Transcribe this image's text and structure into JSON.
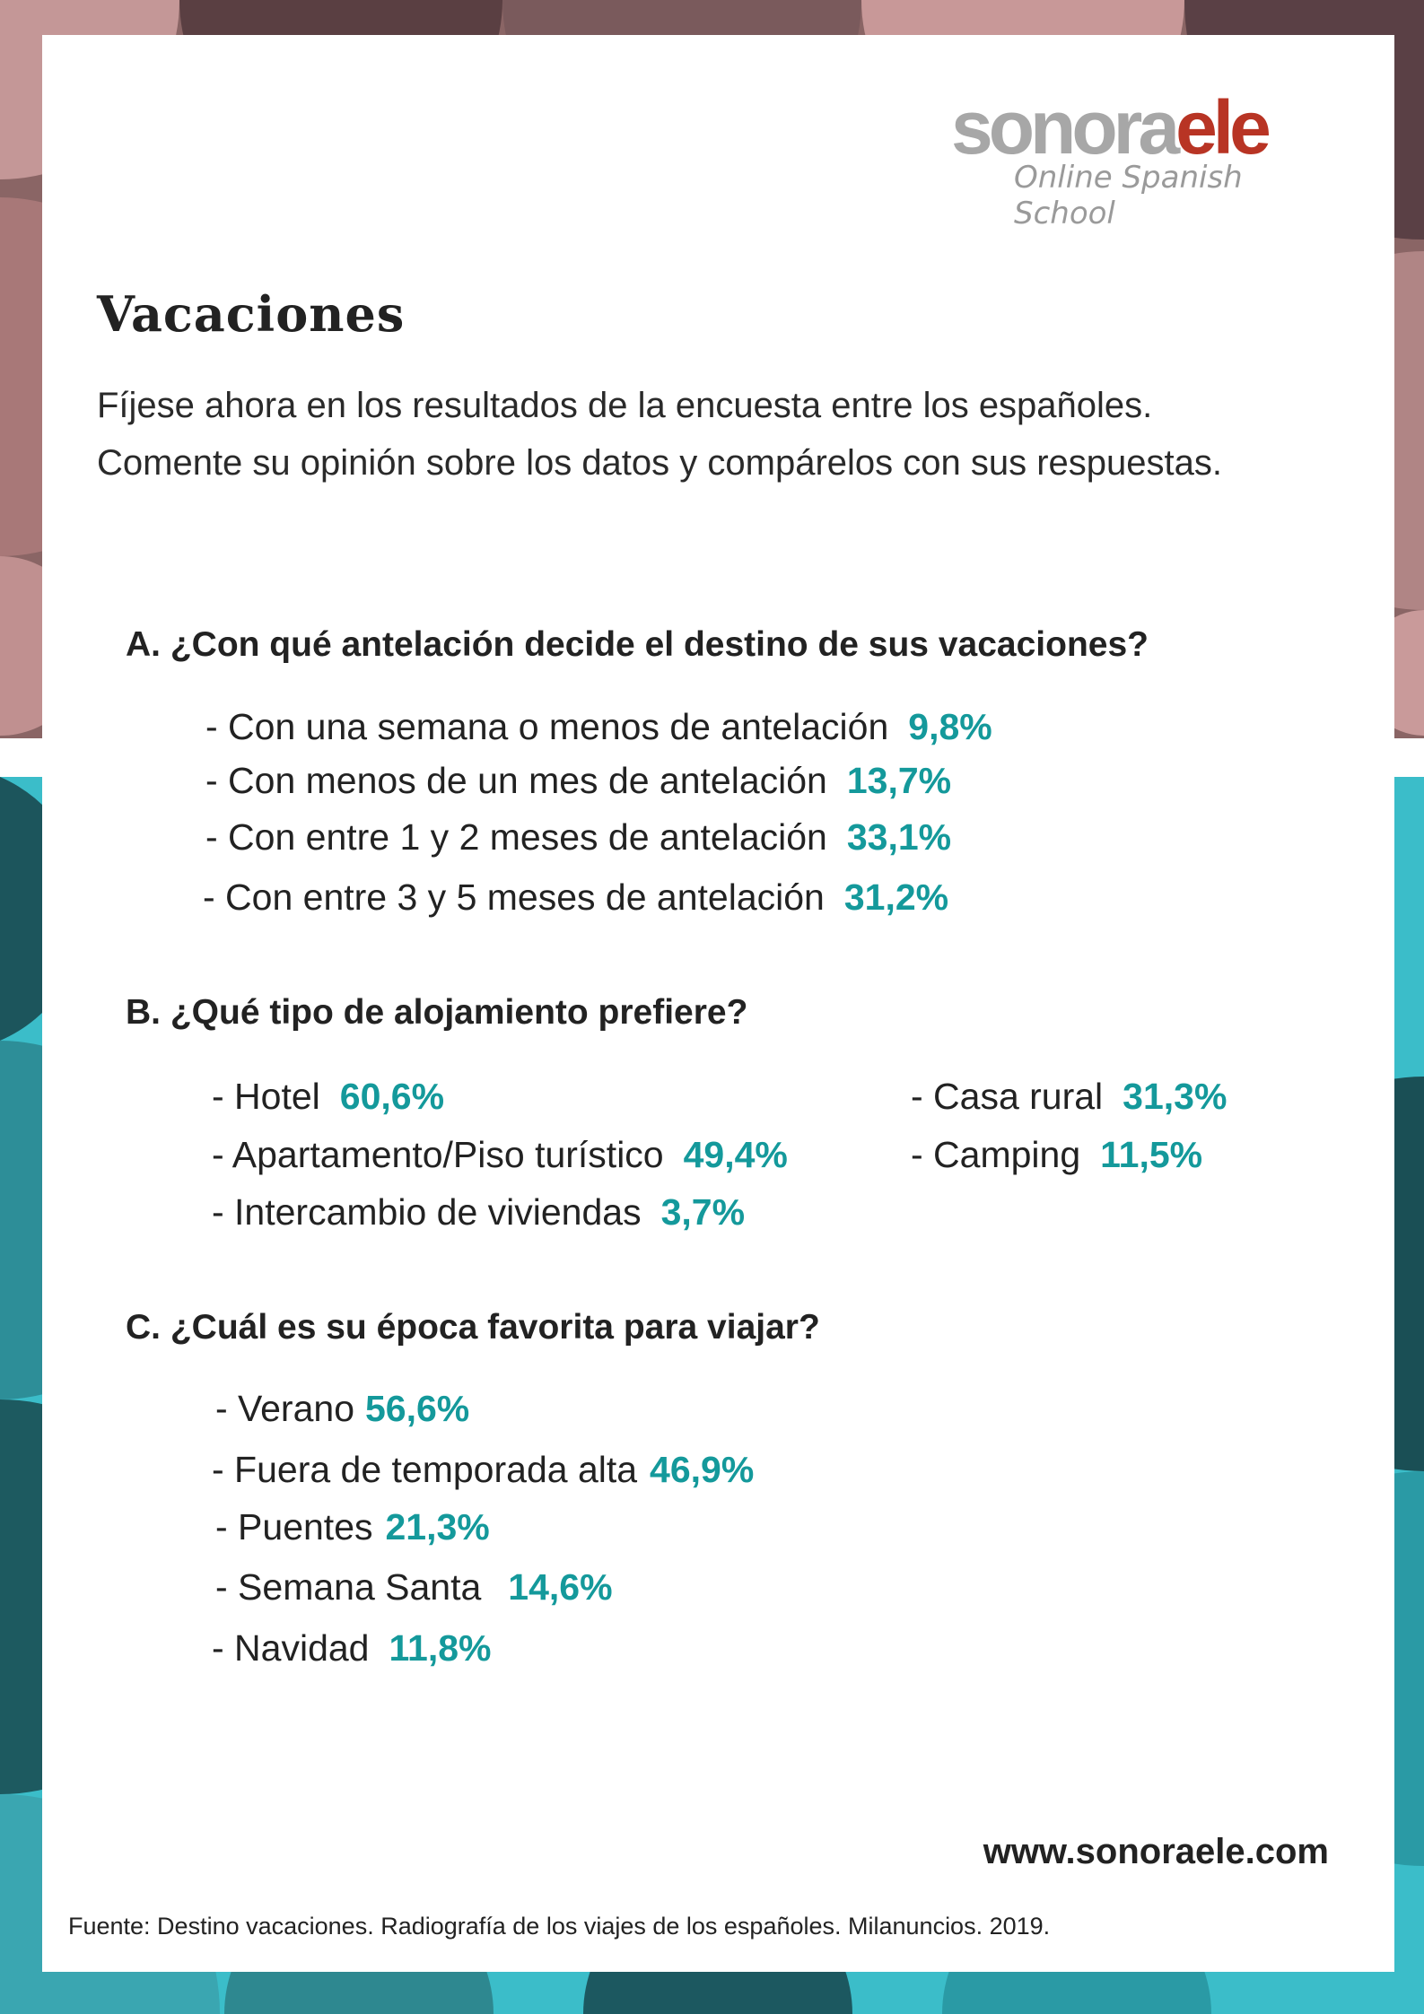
{
  "colors": {
    "accent": "#14999b",
    "logo_grey": "#a7a7a7",
    "logo_red": "#b83424",
    "top_bg": "#b08080",
    "bottom_bg": "#3bbdc9"
  },
  "logo": {
    "part1": "sonora",
    "part2": "ele",
    "tagline": "Online Spanish School"
  },
  "title": "Vacaciones",
  "intro": [
    "Fíjese ahora en los resultados de la encuesta entre los españoles.",
    "Comente su opinión sobre los datos y compárelos con sus respuestas."
  ],
  "sections": [
    {
      "question": "A. ¿Con qué antelación decide el destino de sus vacaciones?",
      "items": [
        {
          "label": "- Con una semana o menos de antelación",
          "value": "9,8%"
        },
        {
          "label": "- Con menos de un mes de antelación",
          "value": "13,7%"
        },
        {
          "label": "- Con entre 1 y 2 meses de antelación",
          "value": "33,1%"
        },
        {
          "label": "- Con entre 3 y 5 meses de antelación",
          "value": "31,2%"
        }
      ]
    },
    {
      "question": "B. ¿Qué tipo de alojamiento prefiere?",
      "items": [
        {
          "label": "- Hotel",
          "value": "60,6%"
        },
        {
          "label": "- Apartamento/Piso turístico",
          "value": "49,4%"
        },
        {
          "label": "- Intercambio de viviendas",
          "value": "3,7%"
        },
        {
          "label": "- Casa rural",
          "value": "31,3%"
        },
        {
          "label": "- Camping",
          "value": "11,5%"
        }
      ]
    },
    {
      "question": "C. ¿Cuál es su época favorita para viajar?",
      "items": [
        {
          "label": "- Verano",
          "value": "56,6%"
        },
        {
          "label": "- Fuera de temporada alta",
          "value": "46,9%"
        },
        {
          "label": "- Puentes",
          "value": "21,3%"
        },
        {
          "label": "- Semana Santa",
          "value": "14,6%"
        },
        {
          "label": "- Navidad",
          "value": "11,8%"
        }
      ]
    }
  ],
  "website": "www.sonoraele.com",
  "source": "Fuente: Destino vacaciones. Radiografía de los viajes de los españoles. Milanuncios. 2019."
}
